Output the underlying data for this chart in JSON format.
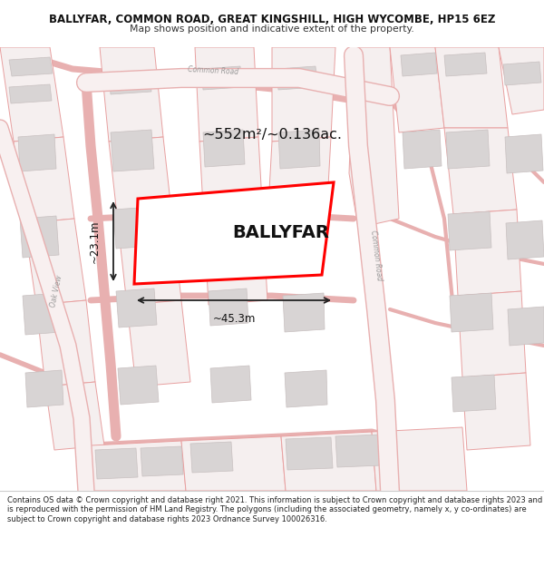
{
  "title_line1": "BALLYFAR, COMMON ROAD, GREAT KINGSHILL, HIGH WYCOMBE, HP15 6EZ",
  "title_line2": "Map shows position and indicative extent of the property.",
  "property_name": "BALLYFAR",
  "area_text": "~552m²/~0.136ac.",
  "width_text": "~45.3m",
  "height_text": "~23.1m",
  "footer_text": "Contains OS data © Crown copyright and database right 2021. This information is subject to Crown copyright and database rights 2023 and is reproduced with the permission of HM Land Registry. The polygons (including the associated geometry, namely x, y co-ordinates) are subject to Crown copyright and database rights 2023 Ordnance Survey 100026316.",
  "map_bg": "#ffffff",
  "road_outline_color": "#e8b0b0",
  "road_fill_color": "#f8f0f0",
  "building_color": "#d8d4d4",
  "building_edge": "#c8c0c0",
  "plot_outline_color": "#e8a0a0",
  "plot_fill_color": "#f5efef",
  "property_outline": "#ff0000",
  "property_fill": "#ffffff",
  "title_color": "#111111",
  "subtitle_color": "#333333",
  "footer_color": "#222222",
  "dim_color": "#222222",
  "road_label_color": "#999999"
}
